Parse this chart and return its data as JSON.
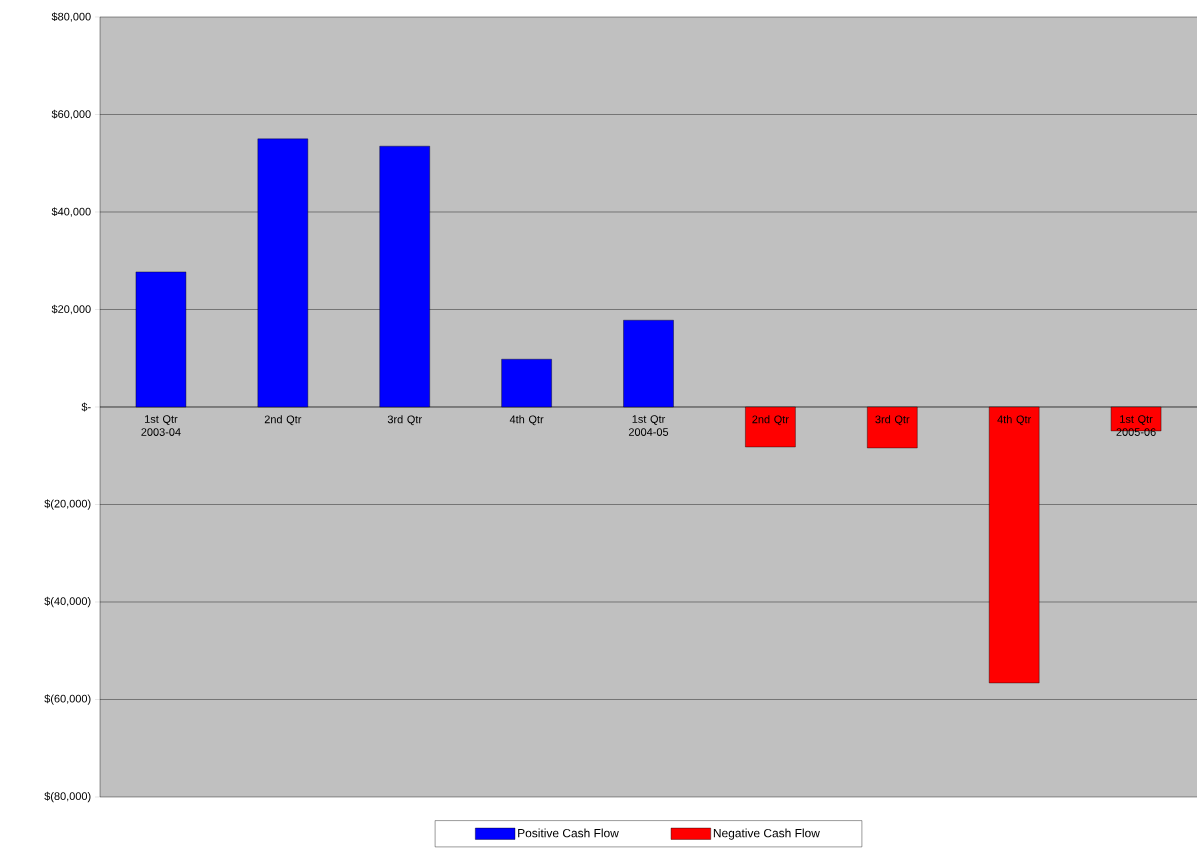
{
  "chart_data": {
    "type": "bar",
    "categories": [
      "1st Qtr 2003-04",
      "2nd Qtr",
      "3rd Qtr",
      "4th Qtr",
      "1st Qtr 2004-05",
      "2nd Qtr",
      "3rd Qtr",
      "4th Qtr",
      "1st Qtr 2005-06"
    ],
    "series": [
      {
        "name": "Positive Cash Flow",
        "color": "#0000ff",
        "values": [
          27700,
          55000,
          53500,
          9800,
          17800,
          null,
          null,
          null,
          null
        ]
      },
      {
        "name": "Negative Cash Flow",
        "color": "#ff0000",
        "values": [
          null,
          null,
          null,
          null,
          null,
          -8200,
          -8400,
          -56600,
          -4900
        ]
      }
    ],
    "ylim": [
      -80000,
      80000
    ],
    "yticks": [
      {
        "value": -80000,
        "label": "$(80,000)"
      },
      {
        "value": -60000,
        "label": "$(60,000)"
      },
      {
        "value": -40000,
        "label": "$(40,000)"
      },
      {
        "value": -20000,
        "label": "$(20,000)"
      },
      {
        "value": 0,
        "label": "$-"
      },
      {
        "value": 20000,
        "label": "$20,000"
      },
      {
        "value": 40000,
        "label": "$40,000"
      },
      {
        "value": 60000,
        "label": "$60,000"
      },
      {
        "value": 80000,
        "label": "$80,000"
      }
    ],
    "grid": "y",
    "legend": "bottom"
  }
}
